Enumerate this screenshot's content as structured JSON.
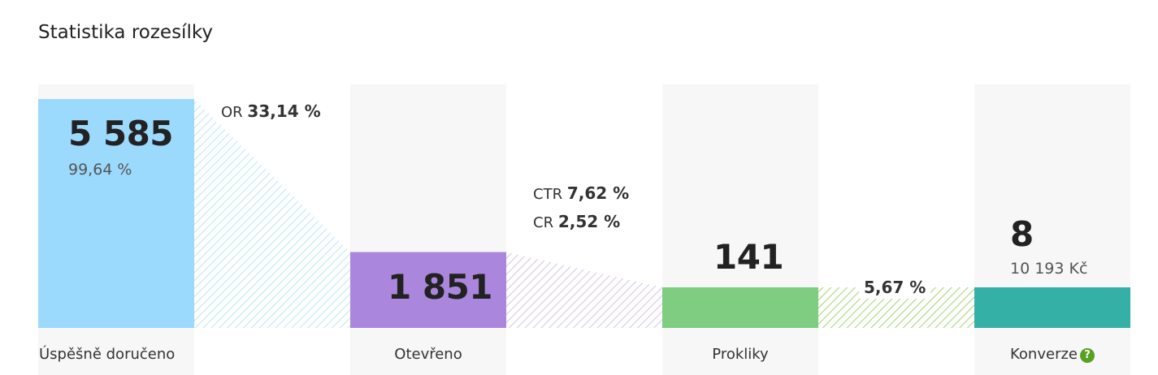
{
  "page": {
    "title": "Statistika rozesílky"
  },
  "chart_data": {
    "type": "bar",
    "categories": [
      "Úspěšně doručeno",
      "Otevřeno",
      "Prokliky",
      "Konverze"
    ],
    "values": [
      5585,
      1851,
      141,
      8
    ],
    "value_labels": [
      "5 585",
      "1 851",
      "141",
      "8"
    ],
    "sub_labels": [
      "99,64 %",
      "",
      "",
      "10 193 Kč"
    ],
    "rates": [
      [
        {
          "prefix": "OR",
          "value": "33,14 %"
        }
      ],
      [
        {
          "prefix": "CTR",
          "value": "7,62 %"
        },
        {
          "prefix": "CR",
          "value": "2,52 %"
        }
      ],
      [
        {
          "prefix": "",
          "value": "5,67 %"
        }
      ]
    ],
    "colors": [
      "#9bd9fd",
      "#ab86dd",
      "#7ecd81",
      "#35b0a6"
    ],
    "hatch_colors": [
      "#bfe8fc",
      "#d6c8ef",
      "#a9d97a"
    ],
    "conversion_help": "?"
  }
}
